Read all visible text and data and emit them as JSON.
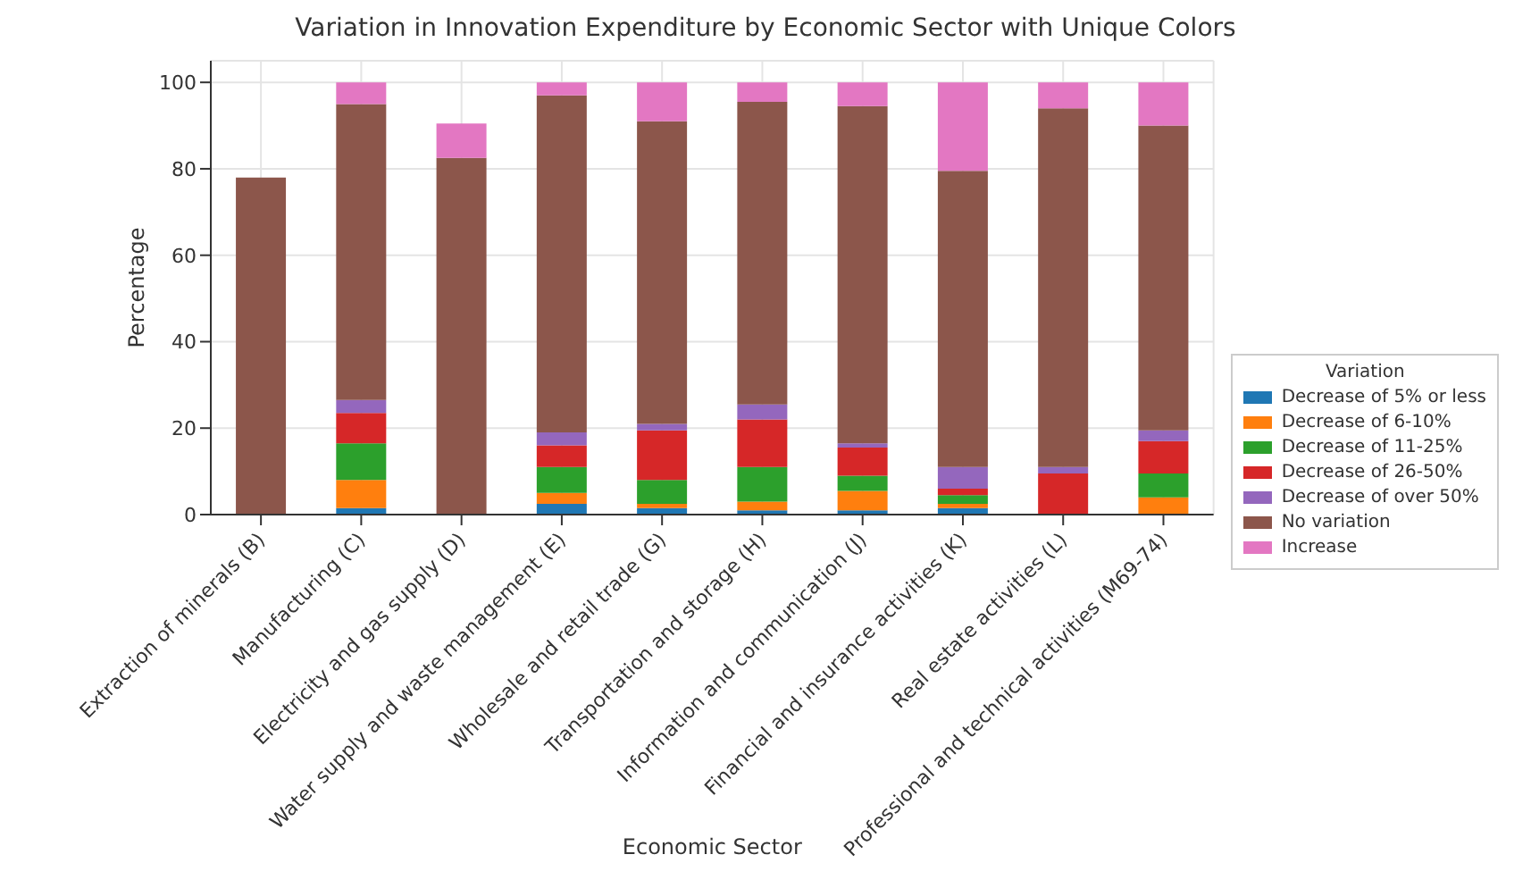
{
  "chart_data": {
    "type": "bar",
    "stacked": true,
    "title": "Variation in Innovation Expenditure by Economic Sector with Unique Colors",
    "xlabel": "Economic Sector",
    "ylabel": "Percentage",
    "legend_title": "Variation",
    "legend": "right",
    "grid": true,
    "ylim": [
      0,
      105
    ],
    "yticks": [
      0,
      20,
      40,
      60,
      80,
      100
    ],
    "categories": [
      "Extraction of minerals (B)",
      "Manufacturing (C)",
      "Electricity and gas supply (D)",
      "Water supply and waste management (E)",
      "Wholesale and retail trade (G)",
      "Transportation and storage (H)",
      "Information and communication (J)",
      "Financial and insurance activities (K)",
      "Real estate activities (L)",
      "Professional and technical activities (M69-74)"
    ],
    "series": [
      {
        "name": "Decrease of 5% or less",
        "color": "#1f77b4",
        "values": [
          0,
          1.5,
          0,
          2.5,
          1.5,
          1,
          1,
          1.5,
          0,
          0
        ]
      },
      {
        "name": "Decrease of 6-10%",
        "color": "#ff7f0e",
        "values": [
          0,
          6.5,
          0,
          2.5,
          1,
          2,
          4.5,
          1,
          0,
          4
        ]
      },
      {
        "name": "Decrease of 11-25%",
        "color": "#2ca02c",
        "values": [
          0,
          8.5,
          0,
          6,
          5.5,
          8,
          3.5,
          2,
          0,
          5.5
        ]
      },
      {
        "name": "Decrease of 26-50%",
        "color": "#d62728",
        "values": [
          0,
          7,
          0,
          5,
          11.5,
          11,
          6.5,
          1.5,
          9.5,
          7.5
        ]
      },
      {
        "name": "Decrease of over 50%",
        "color": "#9467bd",
        "values": [
          0,
          3,
          0,
          3,
          1.5,
          3.5,
          1,
          5,
          1.5,
          2.5
        ]
      },
      {
        "name": "No variation",
        "color": "#8c564b",
        "values": [
          78,
          68.5,
          82.5,
          78,
          70,
          70,
          78,
          68.5,
          83,
          70.5
        ]
      },
      {
        "name": "Increase",
        "color": "#e377c2",
        "values": [
          0,
          5,
          8,
          3,
          9,
          4.5,
          5.5,
          20.5,
          6,
          10
        ]
      }
    ]
  }
}
